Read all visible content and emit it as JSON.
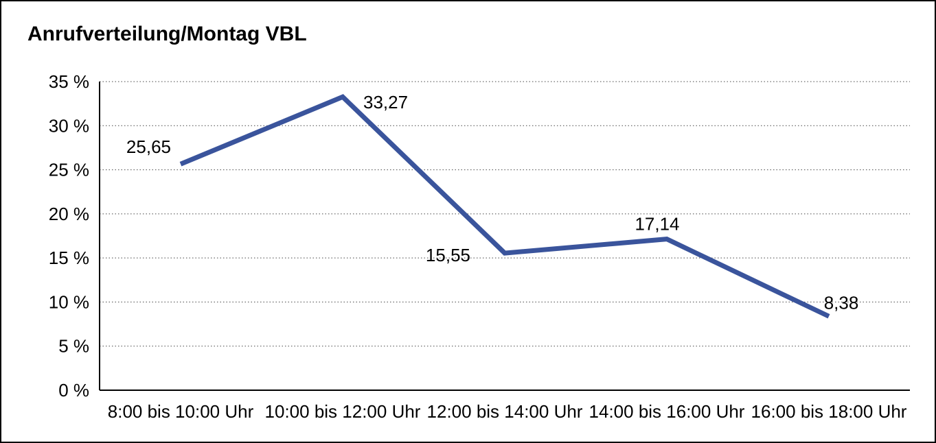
{
  "colors": {
    "line": "#3A549C",
    "axis": "#000000",
    "grid": "#444444",
    "text": "#000000",
    "frame_border": "#000000",
    "background": "#FFFFFF"
  },
  "chart_data": {
    "type": "line",
    "title": "Anrufverteilung/Montag VBL",
    "categories": [
      "8:00 bis 10:00 Uhr",
      "10:00 bis 12:00 Uhr",
      "12:00 bis 14:00 Uhr",
      "14:00 bis 16:00 Uhr",
      "16:00 bis 18:00 Uhr"
    ],
    "values": [
      25.65,
      33.27,
      15.55,
      17.14,
      8.38
    ],
    "value_labels": [
      "25,65",
      "33,27",
      "15,55",
      "17,14",
      "8,38"
    ],
    "xlabel": "",
    "ylabel": "",
    "ylim": [
      0,
      35
    ],
    "ytick_step": 5,
    "ytick_labels": [
      "0 %",
      "5 %",
      "10 %",
      "15 %",
      "20 %",
      "25 %",
      "30 %",
      "35 %"
    ],
    "grid": "dotted-horizontal",
    "legend": "none"
  }
}
